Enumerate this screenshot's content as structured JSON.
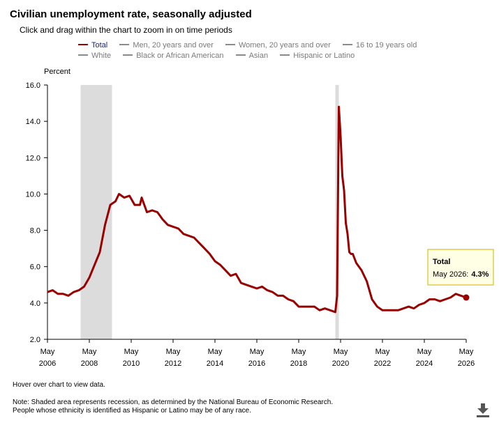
{
  "header": {
    "title": "Civilian unemployment rate, seasonally adjusted",
    "subtitle": "Click and drag within the chart to zoom in on time periods"
  },
  "legend": {
    "row1": [
      "Total",
      "Men, 20 years and over",
      "Women, 20 years and over",
      "16 to 19 years old"
    ],
    "row2": [
      "White",
      "Black or African American",
      "Asian",
      "Hispanic or Latino"
    ]
  },
  "tooltip": {
    "series": "Total",
    "date": "May 2026:",
    "value": "4.3%"
  },
  "footer": {
    "hint": "Hover over chart to view data.",
    "note1": "Note: Shaded area represents recession, as determined by the National Bureau of Economic Research.",
    "note2": "People whose ethnicity is identified as Hispanic or Latino may be of any race."
  },
  "colors": {
    "series": "#990000",
    "recession": "#dcdcdc",
    "legend_active": "#1a237e",
    "legend_inactive": "#7a7a7a",
    "tooltip_border": "#ccb300",
    "tooltip_bg": "#ffffe6"
  },
  "icons": {
    "download": "download-icon"
  },
  "chart_data": {
    "type": "line",
    "title": "Civilian unemployment rate, seasonally adjusted",
    "ylabel": "Percent",
    "xlabel": "",
    "ylim": [
      2.0,
      16.0
    ],
    "yticks": [
      "2.0",
      "4.0",
      "6.0",
      "8.0",
      "10.0",
      "12.0",
      "14.0",
      "16.0"
    ],
    "xticks": [
      {
        "month": "May",
        "year": "2006"
      },
      {
        "month": "May",
        "year": "2008"
      },
      {
        "month": "May",
        "year": "2010"
      },
      {
        "month": "May",
        "year": "2012"
      },
      {
        "month": "May",
        "year": "2014"
      },
      {
        "month": "May",
        "year": "2016"
      },
      {
        "month": "May",
        "year": "2018"
      },
      {
        "month": "May",
        "year": "2020"
      },
      {
        "month": "May",
        "year": "2022"
      },
      {
        "month": "May",
        "year": "2024"
      },
      {
        "month": "May",
        "year": "2026"
      }
    ],
    "xlim": [
      "2006-05",
      "2026-05"
    ],
    "grid": false,
    "legend_position": "top",
    "recessions": [
      {
        "start": "2007-12",
        "end": "2009-06"
      },
      {
        "start": "2020-02",
        "end": "2020-04"
      }
    ],
    "series": [
      {
        "name": "Total",
        "points": [
          [
            "2006-05",
            4.6
          ],
          [
            "2006-08",
            4.7
          ],
          [
            "2006-11",
            4.5
          ],
          [
            "2007-02",
            4.5
          ],
          [
            "2007-05",
            4.4
          ],
          [
            "2007-08",
            4.6
          ],
          [
            "2007-11",
            4.7
          ],
          [
            "2008-02",
            4.9
          ],
          [
            "2008-05",
            5.4
          ],
          [
            "2008-08",
            6.1
          ],
          [
            "2008-11",
            6.8
          ],
          [
            "2009-02",
            8.3
          ],
          [
            "2009-05",
            9.4
          ],
          [
            "2009-08",
            9.6
          ],
          [
            "2009-10",
            10.0
          ],
          [
            "2010-01",
            9.8
          ],
          [
            "2010-04",
            9.9
          ],
          [
            "2010-07",
            9.4
          ],
          [
            "2010-10",
            9.4
          ],
          [
            "2010-11",
            9.8
          ],
          [
            "2011-02",
            9.0
          ],
          [
            "2011-05",
            9.1
          ],
          [
            "2011-08",
            9.0
          ],
          [
            "2011-11",
            8.6
          ],
          [
            "2012-02",
            8.3
          ],
          [
            "2012-05",
            8.2
          ],
          [
            "2012-08",
            8.1
          ],
          [
            "2012-11",
            7.8
          ],
          [
            "2013-02",
            7.7
          ],
          [
            "2013-05",
            7.6
          ],
          [
            "2013-08",
            7.3
          ],
          [
            "2013-11",
            7.0
          ],
          [
            "2014-02",
            6.7
          ],
          [
            "2014-05",
            6.3
          ],
          [
            "2014-08",
            6.1
          ],
          [
            "2014-11",
            5.8
          ],
          [
            "2015-02",
            5.5
          ],
          [
            "2015-05",
            5.6
          ],
          [
            "2015-08",
            5.1
          ],
          [
            "2015-11",
            5.0
          ],
          [
            "2016-02",
            4.9
          ],
          [
            "2016-05",
            4.8
          ],
          [
            "2016-08",
            4.9
          ],
          [
            "2016-11",
            4.7
          ],
          [
            "2017-02",
            4.6
          ],
          [
            "2017-05",
            4.4
          ],
          [
            "2017-08",
            4.4
          ],
          [
            "2017-11",
            4.2
          ],
          [
            "2018-02",
            4.1
          ],
          [
            "2018-05",
            3.8
          ],
          [
            "2018-08",
            3.8
          ],
          [
            "2018-11",
            3.8
          ],
          [
            "2019-02",
            3.8
          ],
          [
            "2019-05",
            3.6
          ],
          [
            "2019-08",
            3.7
          ],
          [
            "2019-11",
            3.6
          ],
          [
            "2020-02",
            3.5
          ],
          [
            "2020-03",
            4.4
          ],
          [
            "2020-04",
            14.8
          ],
          [
            "2020-05",
            13.2
          ],
          [
            "2020-06",
            11.0
          ],
          [
            "2020-07",
            10.2
          ],
          [
            "2020-08",
            8.4
          ],
          [
            "2020-09",
            7.8
          ],
          [
            "2020-10",
            6.8
          ],
          [
            "2020-11",
            6.7
          ],
          [
            "2020-12",
            6.7
          ],
          [
            "2021-02",
            6.2
          ],
          [
            "2021-05",
            5.8
          ],
          [
            "2021-08",
            5.2
          ],
          [
            "2021-11",
            4.2
          ],
          [
            "2022-02",
            3.8
          ],
          [
            "2022-05",
            3.6
          ],
          [
            "2022-08",
            3.6
          ],
          [
            "2022-11",
            3.6
          ],
          [
            "2023-02",
            3.6
          ],
          [
            "2023-05",
            3.7
          ],
          [
            "2023-08",
            3.8
          ],
          [
            "2023-11",
            3.7
          ],
          [
            "2024-02",
            3.9
          ],
          [
            "2024-05",
            4.0
          ],
          [
            "2024-08",
            4.2
          ],
          [
            "2024-11",
            4.2
          ],
          [
            "2025-02",
            4.1
          ],
          [
            "2025-05",
            4.2
          ],
          [
            "2025-08",
            4.3
          ],
          [
            "2025-11",
            4.5
          ],
          [
            "2026-02",
            4.4
          ],
          [
            "2026-05",
            4.3
          ]
        ]
      }
    ]
  }
}
